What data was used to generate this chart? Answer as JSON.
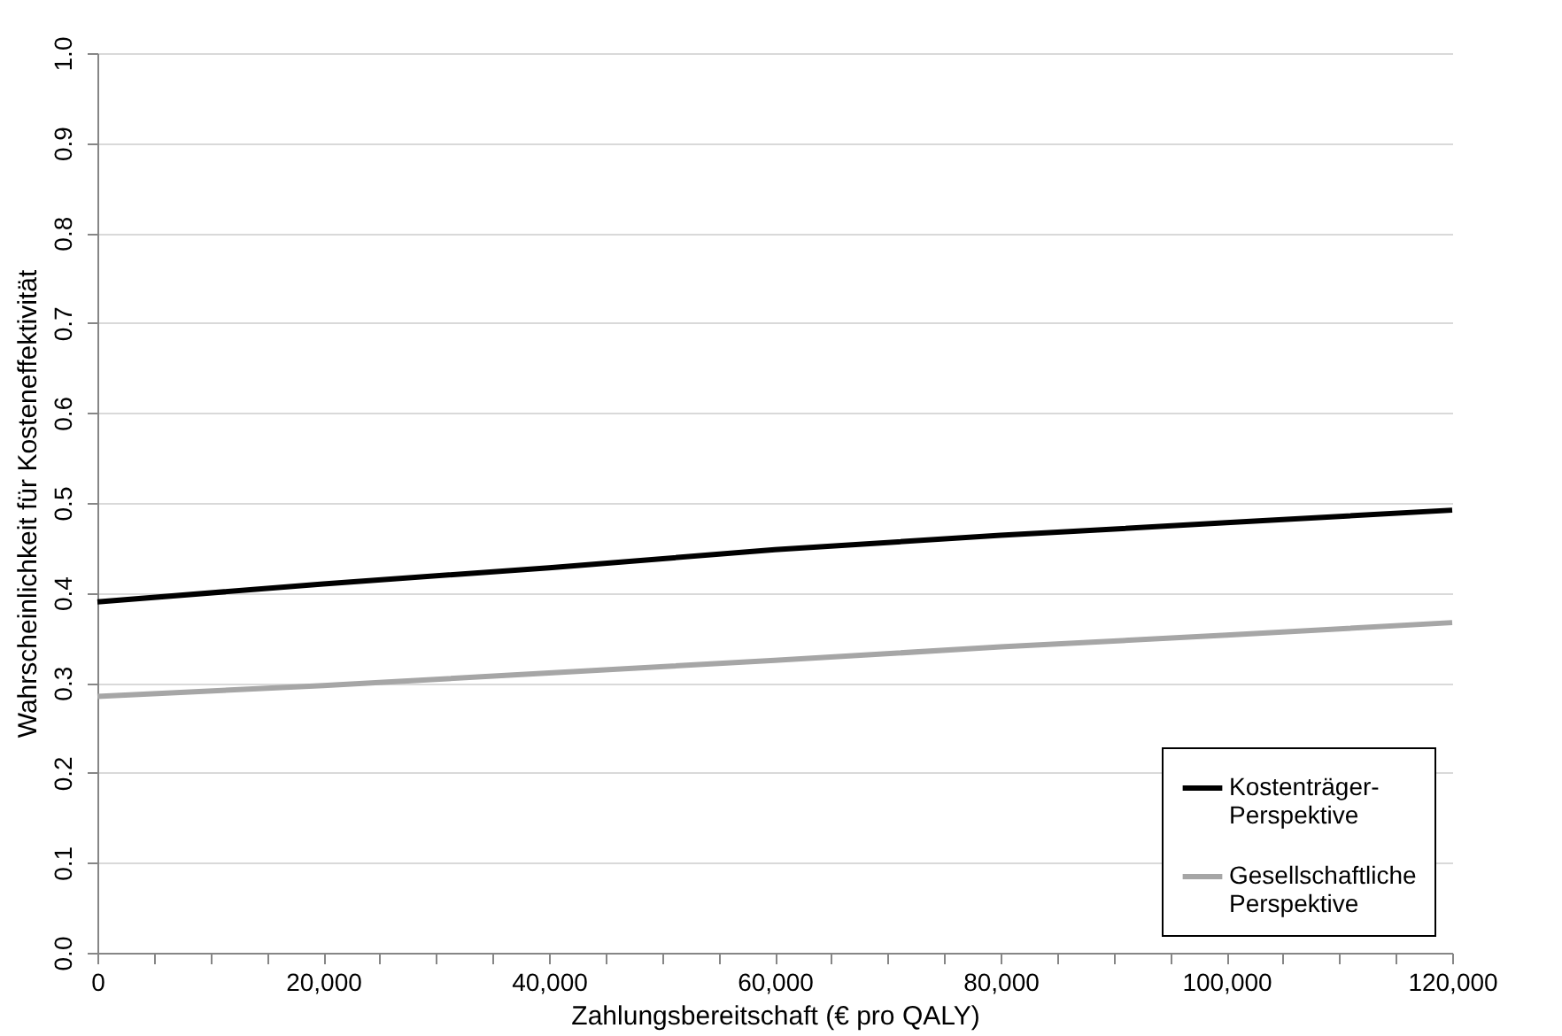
{
  "chart_data": {
    "type": "line",
    "xlabel": "Zahlungsbereitschaft (€ pro QALY)",
    "ylabel": "Wahrscheinlichkeit für Kosteneffektivität",
    "x": [
      0,
      20000,
      40000,
      60000,
      80000,
      100000,
      120000
    ],
    "series": [
      {
        "name": "Kostenträger-Perspektive",
        "color": "#000000",
        "values": [
          0.39,
          0.41,
          0.428,
          0.448,
          0.464,
          0.478,
          0.492
        ]
      },
      {
        "name": "Gesellschaftliche Perspektive",
        "color": "#a6a6a6",
        "values": [
          0.285,
          0.297,
          0.311,
          0.325,
          0.34,
          0.353,
          0.367
        ]
      }
    ],
    "xlim": [
      0,
      120000
    ],
    "xticks": [
      {
        "value": 0,
        "label": "0"
      },
      {
        "value": 5000,
        "label": null
      },
      {
        "value": 10000,
        "label": null
      },
      {
        "value": 15000,
        "label": null
      },
      {
        "value": 20000,
        "label": "20,000"
      },
      {
        "value": 25000,
        "label": null
      },
      {
        "value": 30000,
        "label": null
      },
      {
        "value": 35000,
        "label": null
      },
      {
        "value": 40000,
        "label": "40,000"
      },
      {
        "value": 45000,
        "label": null
      },
      {
        "value": 50000,
        "label": null
      },
      {
        "value": 55000,
        "label": null
      },
      {
        "value": 60000,
        "label": "60,000"
      },
      {
        "value": 65000,
        "label": null
      },
      {
        "value": 70000,
        "label": null
      },
      {
        "value": 75000,
        "label": null
      },
      {
        "value": 80000,
        "label": "80,000"
      },
      {
        "value": 85000,
        "label": null
      },
      {
        "value": 90000,
        "label": null
      },
      {
        "value": 95000,
        "label": null
      },
      {
        "value": 100000,
        "label": "100,000"
      },
      {
        "value": 105000,
        "label": null
      },
      {
        "value": 110000,
        "label": null
      },
      {
        "value": 115000,
        "label": null
      },
      {
        "value": 120000,
        "label": "120,000"
      }
    ],
    "ylim": [
      0,
      1
    ],
    "yticks": [
      {
        "value": 0,
        "label": "0.0"
      },
      {
        "value": 0.1,
        "label": "0.1"
      },
      {
        "value": 0.2,
        "label": "0.2"
      },
      {
        "value": 0.3,
        "label": "0.3"
      },
      {
        "value": 0.4,
        "label": "0.4"
      },
      {
        "value": 0.5,
        "label": "0.5"
      },
      {
        "value": 0.6,
        "label": "0.6"
      },
      {
        "value": 0.7,
        "label": "0.7"
      },
      {
        "value": 0.8,
        "label": "0.8"
      },
      {
        "value": 0.9,
        "label": "0.9"
      },
      {
        "value": 1,
        "label": "1.0"
      }
    ],
    "grid": "y",
    "legend": "bottom right",
    "line_style": "solid"
  }
}
